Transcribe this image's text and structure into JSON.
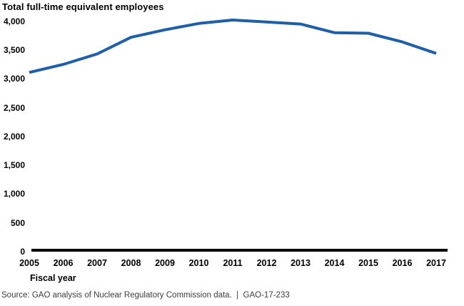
{
  "chart_data": {
    "type": "line",
    "title": "Total full-time equivalent employees",
    "xlabel": "Fiscal year",
    "ylabel": "Total full-time equivalent employees",
    "categories": [
      "2005",
      "2006",
      "2007",
      "2008",
      "2009",
      "2010",
      "2011",
      "2012",
      "2013",
      "2014",
      "2015",
      "2016",
      "2017"
    ],
    "series": [
      {
        "name": "Total full-time equivalent employees",
        "values": [
          3110,
          3250,
          3430,
          3720,
          3850,
          3960,
          4020,
          3985,
          3950,
          3800,
          3790,
          3640,
          3440
        ]
      }
    ],
    "y_ticks": [
      0,
      500,
      1000,
      1500,
      2000,
      2500,
      3000,
      3500,
      4000
    ],
    "ylim": [
      0,
      4000
    ],
    "grid": false,
    "legend": false,
    "line_color": "#1e5fa8",
    "axis_color": "#000000"
  },
  "source_note": "Source: GAO analysis of Nuclear Regulatory Commission data.  |  GAO-17-233"
}
